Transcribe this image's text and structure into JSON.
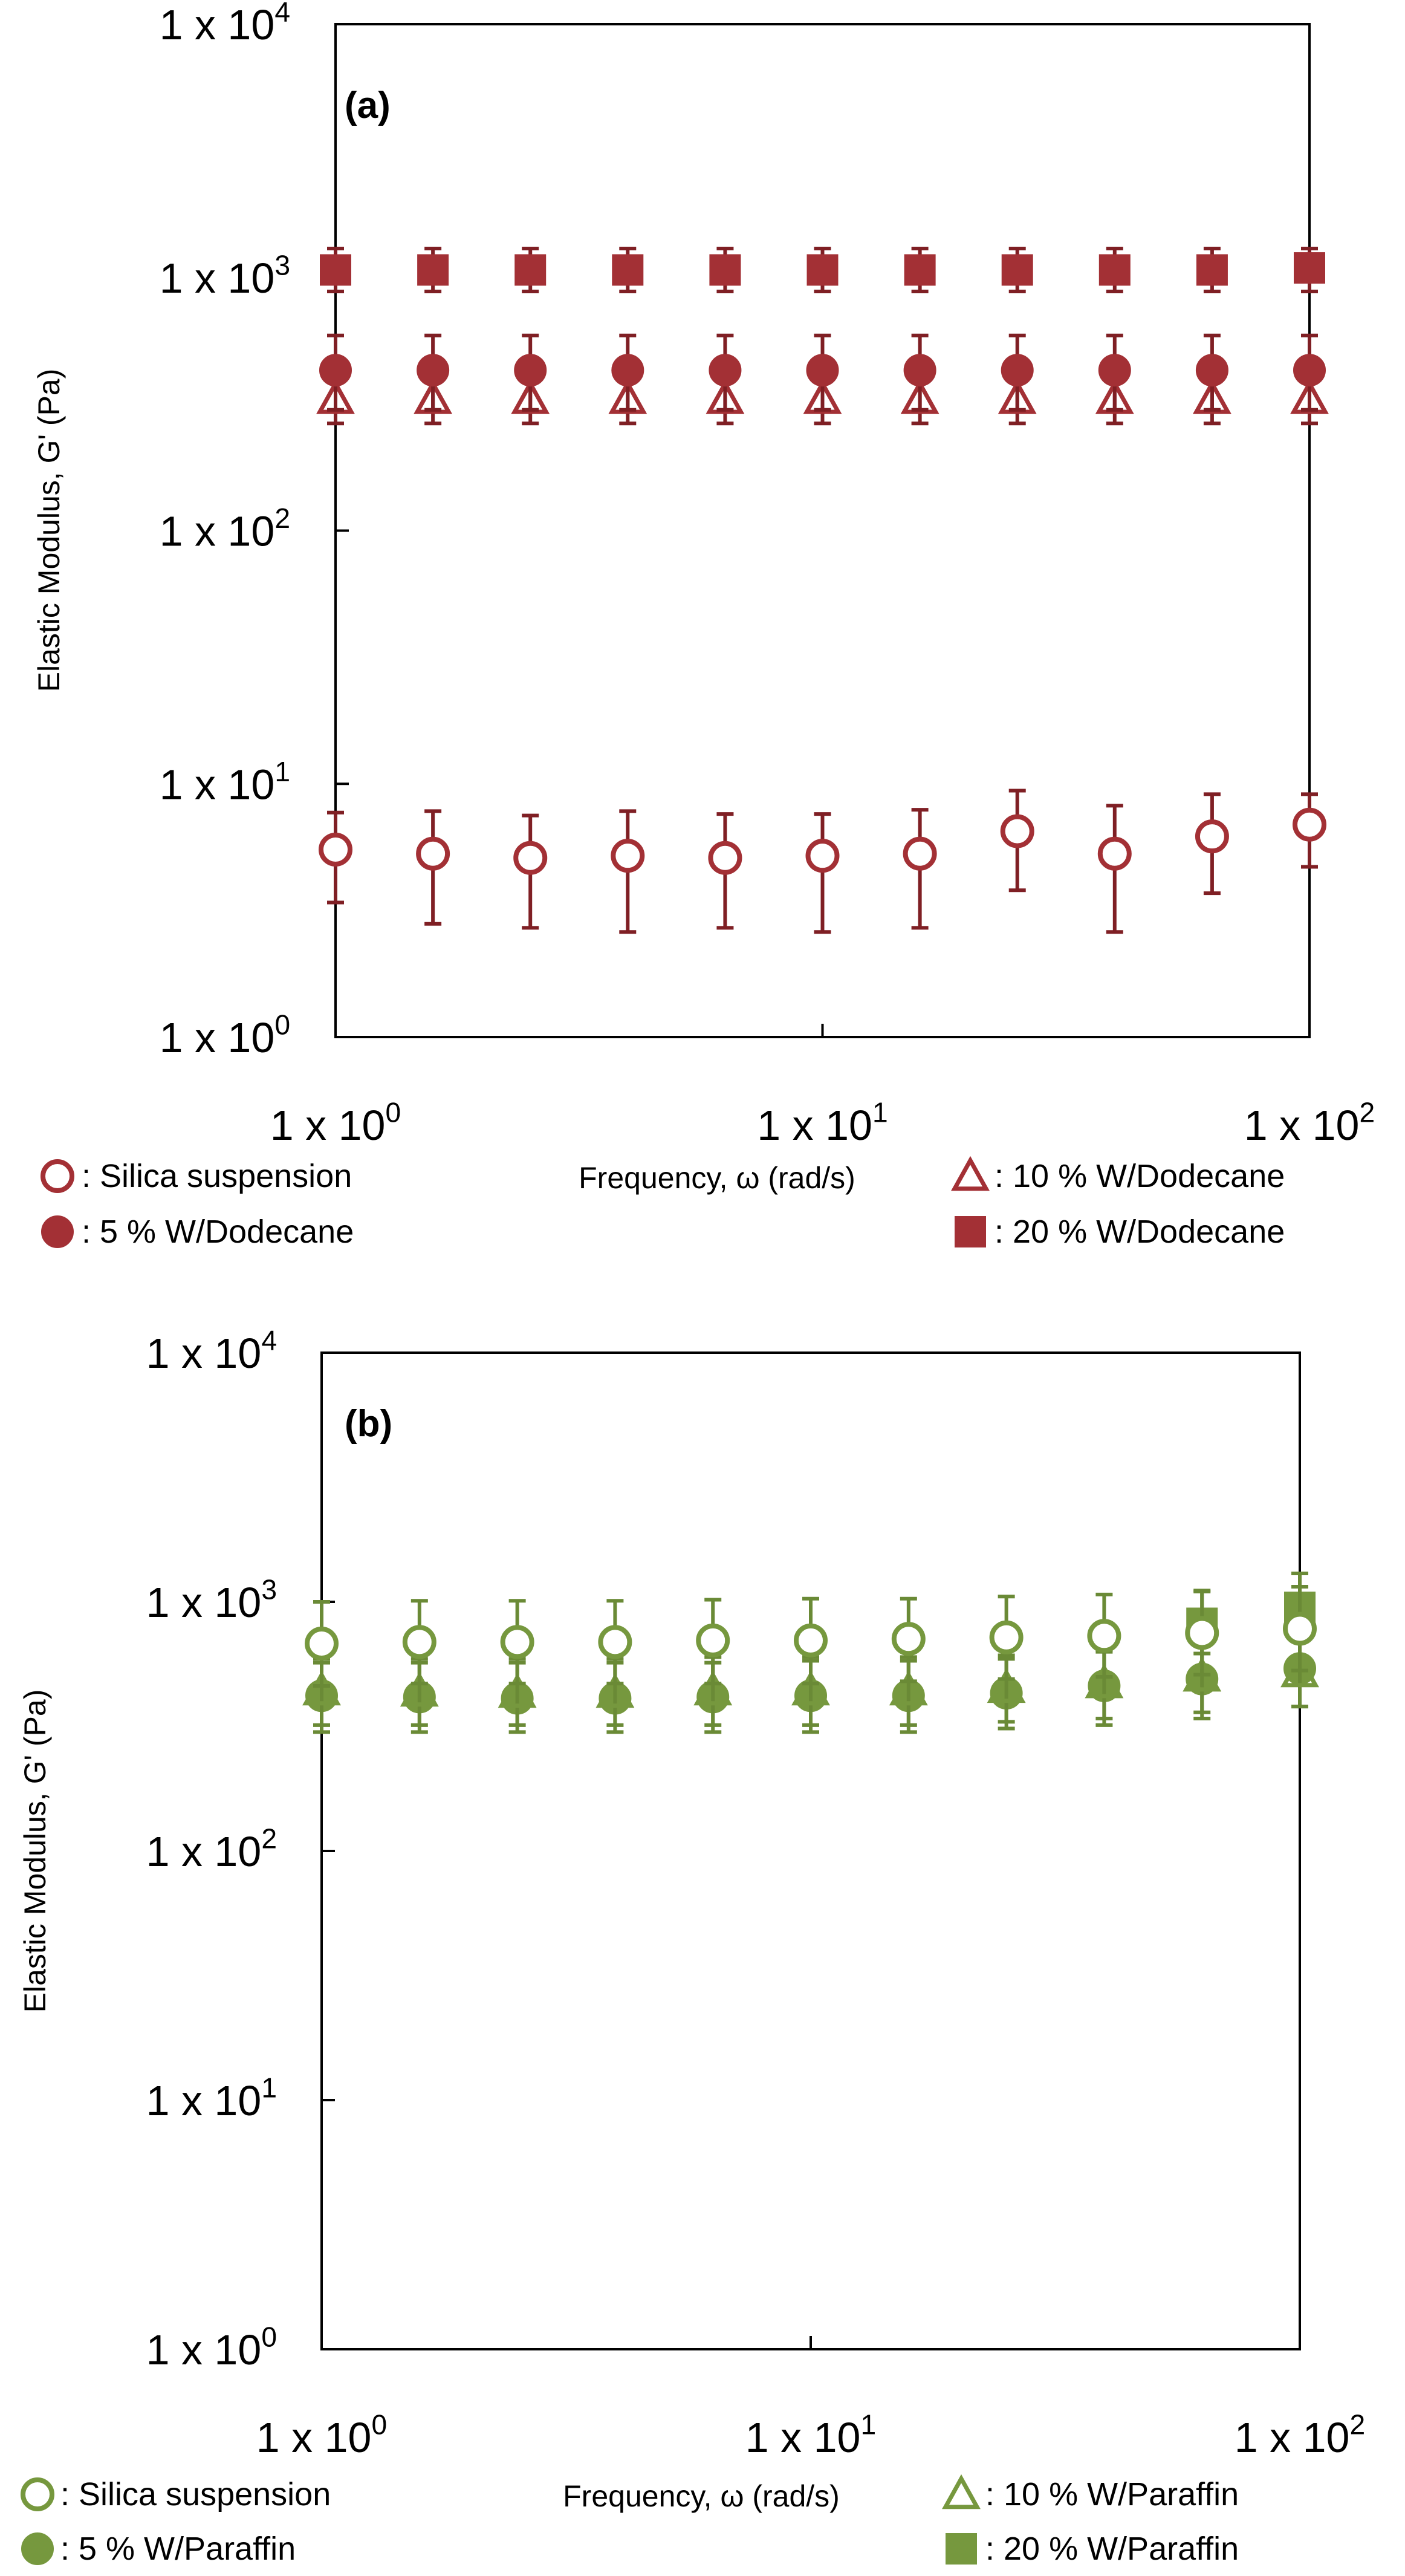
{
  "colors": {
    "panel_a": "#a33035",
    "panel_a_errorbar": "#7f1f24",
    "panel_b": "#76983e",
    "panel_b_errorbar": "#6a8a36"
  },
  "chart_data": [
    {
      "panel": "a",
      "type": "scatter",
      "title": "(a)",
      "xlabel": "Frequency, ω (rad/s)",
      "ylabel": "Elastic Modulus, G' (Pa)",
      "xscale": "log",
      "yscale": "log",
      "xlim": [
        1,
        100
      ],
      "ylim": [
        1,
        10000
      ],
      "xticks": [
        1,
        10,
        100
      ],
      "xtick_labels": [
        {
          "base": "1 x 10",
          "exp": "0"
        },
        {
          "base": "1 x 10",
          "exp": "1"
        },
        {
          "base": "1 x 10",
          "exp": "2"
        }
      ],
      "yticks": [
        1,
        10,
        100,
        1000,
        10000
      ],
      "ytick_labels": [
        {
          "base": "1 x 10",
          "exp": "0"
        },
        {
          "base": "1 x 10",
          "exp": "1"
        },
        {
          "base": "1 x 10",
          "exp": "2"
        },
        {
          "base": "1 x 10",
          "exp": "3"
        },
        {
          "base": "1 x 10",
          "exp": "4"
        }
      ],
      "x": [
        1.0,
        1.585,
        2.512,
        3.981,
        6.31,
        10.0,
        15.85,
        25.12,
        39.81,
        63.1,
        100.0
      ],
      "series": [
        {
          "name": ": Silica suspension",
          "marker": "circle-open",
          "values": [
            5.5,
            5.3,
            5.1,
            5.2,
            5.1,
            5.2,
            5.3,
            6.5,
            5.3,
            6.2,
            6.9
          ],
          "err_low": [
            3.4,
            2.8,
            2.7,
            2.6,
            2.7,
            2.6,
            2.7,
            3.8,
            2.6,
            3.7,
            4.7
          ],
          "err_high": [
            7.7,
            7.8,
            7.5,
            7.8,
            7.6,
            7.6,
            7.9,
            9.4,
            8.2,
            9.1,
            9.1
          ]
        },
        {
          "name": ": 5 % W/Dodecane",
          "marker": "circle-filled",
          "values": [
            430,
            430,
            430,
            430,
            430,
            430,
            430,
            430,
            430,
            430,
            430
          ],
          "err_low": [
            300,
            300,
            300,
            300,
            300,
            300,
            300,
            300,
            300,
            300,
            300
          ],
          "err_high": [
            590,
            590,
            590,
            590,
            590,
            590,
            590,
            590,
            590,
            590,
            590
          ]
        },
        {
          "name": ": 10 % W/Dodecane",
          "marker": "triangle-open",
          "values": [
            330,
            330,
            330,
            330,
            330,
            330,
            330,
            330,
            330,
            330,
            330
          ],
          "err_low": [
            265,
            265,
            265,
            265,
            265,
            265,
            265,
            265,
            265,
            265,
            265
          ],
          "err_high": [
            400,
            400,
            400,
            400,
            400,
            400,
            400,
            400,
            400,
            400,
            400
          ]
        },
        {
          "name": ": 20 % W/Dodecane",
          "marker": "square-filled",
          "values": [
            1070,
            1070,
            1070,
            1070,
            1070,
            1070,
            1070,
            1070,
            1070,
            1070,
            1090
          ],
          "err_low": [
            880,
            880,
            880,
            880,
            880,
            880,
            880,
            880,
            880,
            880,
            880
          ],
          "err_high": [
            1300,
            1300,
            1300,
            1300,
            1300,
            1300,
            1300,
            1300,
            1300,
            1300,
            1300
          ]
        }
      ]
    },
    {
      "panel": "b",
      "type": "scatter",
      "title": "(b)",
      "xlabel": "Frequency, ω (rad/s)",
      "ylabel": "Elastic Modulus, G' (Pa)",
      "xscale": "log",
      "yscale": "log",
      "xlim": [
        1,
        100
      ],
      "ylim": [
        1,
        10000
      ],
      "xticks": [
        1,
        10,
        100
      ],
      "xtick_labels": [
        {
          "base": "1 x 10",
          "exp": "0"
        },
        {
          "base": "1 x 10",
          "exp": "1"
        },
        {
          "base": "1 x 10",
          "exp": "2"
        }
      ],
      "yticks": [
        1,
        10,
        100,
        1000,
        10000
      ],
      "ytick_labels": [
        {
          "base": "1 x 10",
          "exp": "0"
        },
        {
          "base": "1 x 10",
          "exp": "1"
        },
        {
          "base": "1 x 10",
          "exp": "2"
        },
        {
          "base": "1 x 10",
          "exp": "3"
        },
        {
          "base": "1 x 10",
          "exp": "4"
        }
      ],
      "x": [
        1.0,
        1.585,
        2.512,
        3.981,
        6.31,
        10.0,
        15.85,
        25.12,
        39.81,
        63.1,
        100.0
      ],
      "series": [
        {
          "name": ": Silica suspension",
          "marker": "circle-open",
          "values": [
            680,
            690,
            690,
            690,
            700,
            700,
            710,
            720,
            730,
            750,
            780
          ],
          "err_low": [
            460,
            470,
            470,
            470,
            470,
            470,
            480,
            490,
            500,
            510,
            530
          ],
          "err_high": [
            1000,
            1010,
            1010,
            1010,
            1020,
            1030,
            1030,
            1050,
            1070,
            1110,
            1150
          ]
        },
        {
          "name": ": 5 % W/Paraffin",
          "marker": "circle-filled",
          "values": [
            420,
            415,
            410,
            410,
            415,
            420,
            420,
            430,
            460,
            490,
            540
          ],
          "err_low": [
            300,
            300,
            300,
            300,
            300,
            300,
            300,
            310,
            320,
            340,
            380
          ],
          "err_high": [
            570,
            570,
            570,
            570,
            570,
            580,
            580,
            590,
            630,
            680,
            720
          ]
        },
        {
          "name": ": 10 % W/Paraffin",
          "marker": "triangle-open",
          "values": [
            440,
            435,
            430,
            430,
            440,
            440,
            440,
            450,
            470,
            500,
            520
          ],
          "err_low": [
            320,
            320,
            320,
            320,
            320,
            320,
            320,
            330,
            340,
            360,
            380
          ],
          "err_high": [
            590,
            590,
            590,
            590,
            600,
            600,
            600,
            610,
            640,
            690,
            720
          ]
        },
        {
          "name": ": 20 % W/Paraffin",
          "marker": "square-filled",
          "values": [
            null,
            null,
            null,
            null,
            null,
            null,
            null,
            null,
            null,
            820,
            950
          ],
          "err_low": [
            null,
            null,
            null,
            null,
            null,
            null,
            null,
            null,
            null,
            620,
            700
          ],
          "err_high": [
            null,
            null,
            null,
            null,
            null,
            null,
            null,
            null,
            null,
            1100,
            1300
          ]
        }
      ]
    }
  ]
}
